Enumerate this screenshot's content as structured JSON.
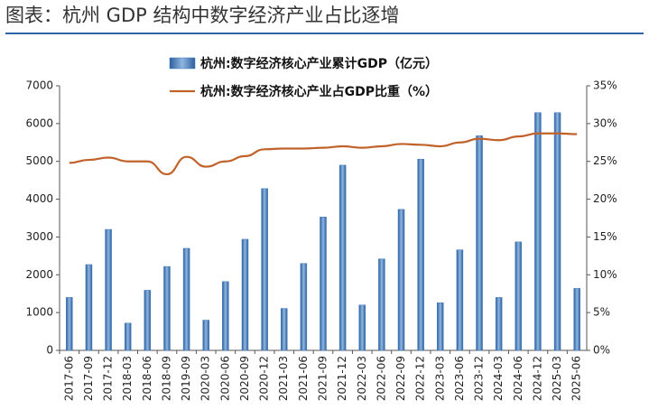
{
  "chart_data": {
    "type": "bar-line",
    "title": "图表：杭州 GDP 结构中数字经济产业占比逐增",
    "categories": [
      "2017-06",
      "2017-09",
      "2017-12",
      "2018-03",
      "2018-06",
      "2018-09",
      "2019-09",
      "2020-03",
      "2020-06",
      "2020-09",
      "2020-12",
      "2021-03",
      "2021-06",
      "2021-09",
      "2021-12",
      "2022-03",
      "2022-06",
      "2022-09",
      "2022-12",
      "2023-03",
      "2023-06",
      "2023-12",
      "2024-03",
      "2024-06",
      "2024-12",
      "2025-03",
      "2025-06"
    ],
    "series": [
      {
        "name": "杭州:数字经济核心产业累计GDP（亿元）",
        "color": "#3f78b8",
        "values": [
          1400,
          2270,
          3200,
          720,
          1590,
          2220,
          2700,
          800,
          1820,
          2940,
          4280,
          1110,
          2300,
          3530,
          4900,
          1200,
          2420,
          3730,
          5060,
          1260,
          2660,
          5680,
          1400,
          2870,
          6290,
          6290,
          1640
        ]
      },
      {
        "name": "杭州:数字经济核心产业占GDP比重（%）",
        "color": "#c0622a",
        "axis": "y2",
        "values": [
          24.8,
          25.2,
          25.5,
          25,
          25,
          23.3,
          25.6,
          24.3,
          25,
          25.7,
          26.6,
          26.7,
          26.7,
          26.8,
          27,
          26.8,
          27,
          27.3,
          27.2,
          27,
          27.5,
          28,
          27.8,
          28.3,
          28.7,
          28.7,
          28.6
        ]
      }
    ],
    "ylim": [
      0,
      7000
    ],
    "yticks": [
      0,
      1000,
      2000,
      3000,
      4000,
      5000,
      6000,
      7000
    ],
    "y2lim": [
      0,
      35
    ],
    "y2ticks": [
      {
        "value": 0,
        "label": "0%"
      },
      {
        "value": 5,
        "label": "5%"
      },
      {
        "value": 10,
        "label": "10%"
      },
      {
        "value": 15,
        "label": "15%"
      },
      {
        "value": 20,
        "label": "20%"
      },
      {
        "value": 25,
        "label": "25%"
      },
      {
        "value": 30,
        "label": "30%"
      },
      {
        "value": 35,
        "label": "35%"
      }
    ]
  }
}
